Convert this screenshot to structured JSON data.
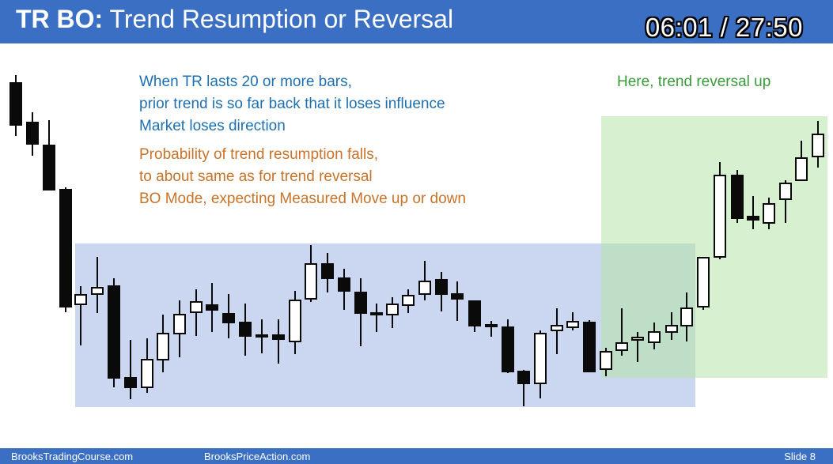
{
  "header": {
    "title_bold": "TR BO:",
    "title_rest": "Trend Resumption or Reversal",
    "timer": "06:01 / 27:50"
  },
  "notes": {
    "blue": [
      "When TR lasts 20 or more bars,",
      "prior trend is so far back that it loses influence",
      "Market loses direction"
    ],
    "orange": [
      "Probability of trend resumption falls,",
      "to about same as for trend reversal",
      "BO Mode, expecting Measured Move up or down"
    ],
    "green": "Here, trend reversal up"
  },
  "footer": {
    "left": "BrooksTradingCourse.com",
    "center": "BrooksPriceAction.com",
    "slide": "Slide  8"
  },
  "colors": {
    "header_bg": "#3a6fc4",
    "range_box": "#a9bce6",
    "reversal_box": "#b6e3a8",
    "bear_body": "#0a0a0a",
    "bull_body": "#ffffff"
  }
}
